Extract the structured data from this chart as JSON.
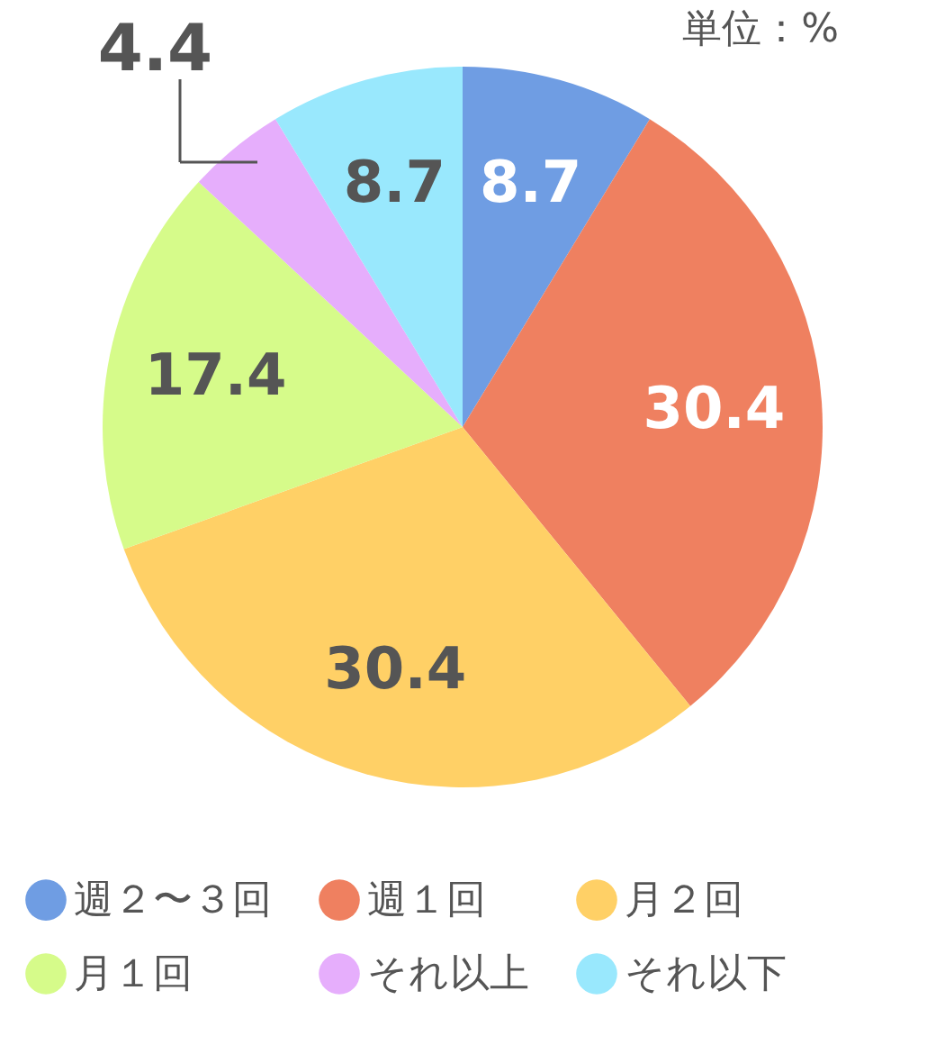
{
  "chart_data": {
    "type": "pie",
    "categories": [
      "週２〜３回",
      "週１回",
      "月２回",
      "月１回",
      "それ以上",
      "それ以下"
    ],
    "values": [
      8.7,
      30.4,
      30.4,
      17.4,
      4.4,
      8.7
    ],
    "colors": [
      "#6f9de3",
      "#ef8060",
      "#ffd066",
      "#d6fb8a",
      "#e6aefc",
      "#99e8fd"
    ],
    "data_labels": true,
    "legend": "bottom",
    "annotations": [
      "単位：%"
    ]
  }
}
